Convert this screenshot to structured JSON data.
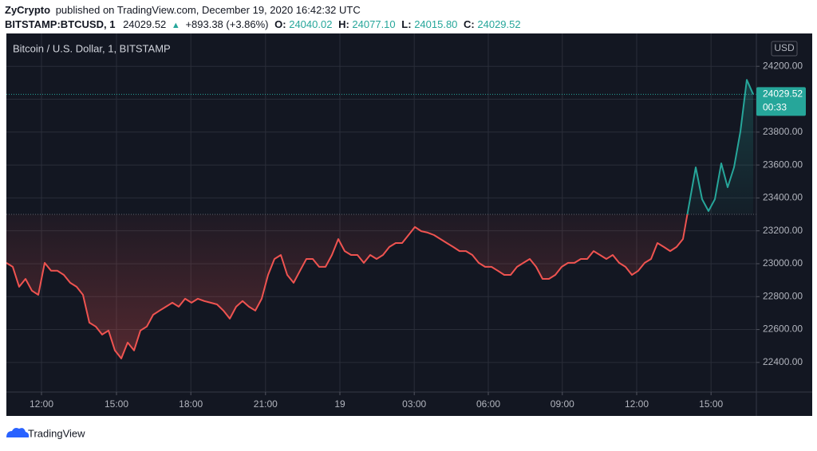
{
  "header": {
    "author": "ZyCrypto",
    "published": "published on TradingView.com, December 19, 2020 16:42:32 UTC",
    "symbol": "BITSTAMP:BTCUSD, 1",
    "last": "24029.52",
    "arrow": "▲",
    "change": "+893.38 (+3.86%)",
    "open_label": "O:",
    "open": "24040.02",
    "high_label": "H:",
    "high": "24077.10",
    "low_label": "L:",
    "low": "24015.80",
    "close_label": "C:",
    "close": "24029.52"
  },
  "footer": {
    "brand": "TradingView"
  },
  "chart_data": {
    "type": "line",
    "title": "Bitcoin / U.S. Dollar, 1, BITSTAMP",
    "currency": "USD",
    "series": [
      {
        "name": "BTCUSD",
        "color_up": "#26a69a",
        "color_down": "#ef5350",
        "values": [
          23005,
          22981,
          22860,
          22908,
          22836,
          22811,
          23005,
          22957,
          22957,
          22932,
          22884,
          22860,
          22811,
          22642,
          22618,
          22569,
          22594,
          22473,
          22424,
          22521,
          22473,
          22594,
          22618,
          22690,
          22715,
          22739,
          22763,
          22739,
          22787,
          22763,
          22787,
          22773,
          22763,
          22753,
          22715,
          22666,
          22739,
          22773,
          22739,
          22715,
          22787,
          22932,
          23029,
          23053,
          22932,
          22884,
          22957,
          23029,
          23029,
          22981,
          22981,
          23053,
          23150,
          23077,
          23053,
          23053,
          23005,
          23053,
          23029,
          23053,
          23102,
          23126,
          23126,
          23174,
          23223,
          23198,
          23189,
          23174,
          23150,
          23126,
          23102,
          23077,
          23077,
          23053,
          23005,
          22981,
          22981,
          22957,
          22932,
          22932,
          22981,
          23005,
          23029,
          22981,
          22908,
          22908,
          22932,
          22981,
          23005,
          23005,
          23029,
          23029,
          23077,
          23053,
          23029,
          23053,
          23005,
          22981,
          22932,
          22957,
          23005,
          23029,
          23126,
          23102,
          23077,
          23102,
          23150,
          23368,
          23586,
          23392,
          23320,
          23392,
          23610,
          23465,
          23586,
          23804,
          24118,
          24030
        ]
      }
    ],
    "baseline": 23300,
    "last_price": 24029.52,
    "countdown": "00:33",
    "xlim": [
      0,
      117.5
    ],
    "xticks": [
      {
        "value": 5.5,
        "label": "12:00"
      },
      {
        "value": 17.25,
        "label": "15:00"
      },
      {
        "value": 28.9,
        "label": "18:00"
      },
      {
        "value": 40.6,
        "label": "21:00"
      },
      {
        "value": 52.25,
        "label": "19"
      },
      {
        "value": 63.9,
        "label": "03:00"
      },
      {
        "value": 75.5,
        "label": "06:00"
      },
      {
        "value": 87.1,
        "label": "09:00"
      },
      {
        "value": 98.75,
        "label": "12:00"
      },
      {
        "value": 110.4,
        "label": "15:00"
      }
    ],
    "ylim": [
      22220,
      24390
    ],
    "yticks": [
      {
        "value": 22400,
        "label": "22400.00"
      },
      {
        "value": 22600,
        "label": "22600.00"
      },
      {
        "value": 22800,
        "label": "22800.00"
      },
      {
        "value": 23000,
        "label": "23000.00"
      },
      {
        "value": 23200,
        "label": "23200.00"
      },
      {
        "value": 23400,
        "label": "23400.00"
      },
      {
        "value": 23600,
        "label": "23600.00"
      },
      {
        "value": 23800,
        "label": "23800.00"
      },
      {
        "value": 24000,
        "label": "24000.00"
      },
      {
        "value": 24200,
        "label": "24200.00"
      }
    ],
    "grid": true
  }
}
